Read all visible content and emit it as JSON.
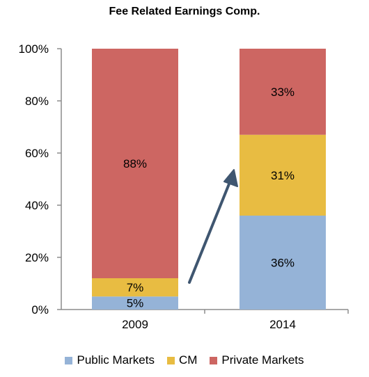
{
  "chart_data": {
    "type": "bar",
    "stacked": true,
    "title": "Fee Related Earnings Comp.",
    "categories": [
      "2009",
      "2014"
    ],
    "series": [
      {
        "name": "Public Markets",
        "color": "#95b3d7",
        "values": [
          5,
          36
        ],
        "labels": [
          "5%",
          "36%"
        ]
      },
      {
        "name": "CM",
        "color": "#e8bc42",
        "values": [
          7,
          31
        ],
        "labels": [
          "7%",
          "31%"
        ]
      },
      {
        "name": "Private Markets",
        "color": "#cd6662",
        "values": [
          88,
          33
        ],
        "labels": [
          "88%",
          "33%"
        ]
      }
    ],
    "ylim": [
      0,
      100
    ],
    "yticks": [
      "0%",
      "20%",
      "40%",
      "60%",
      "80%",
      "100%"
    ],
    "annotation": "arrow-up-right",
    "grid": false,
    "legend_position": "bottom"
  }
}
